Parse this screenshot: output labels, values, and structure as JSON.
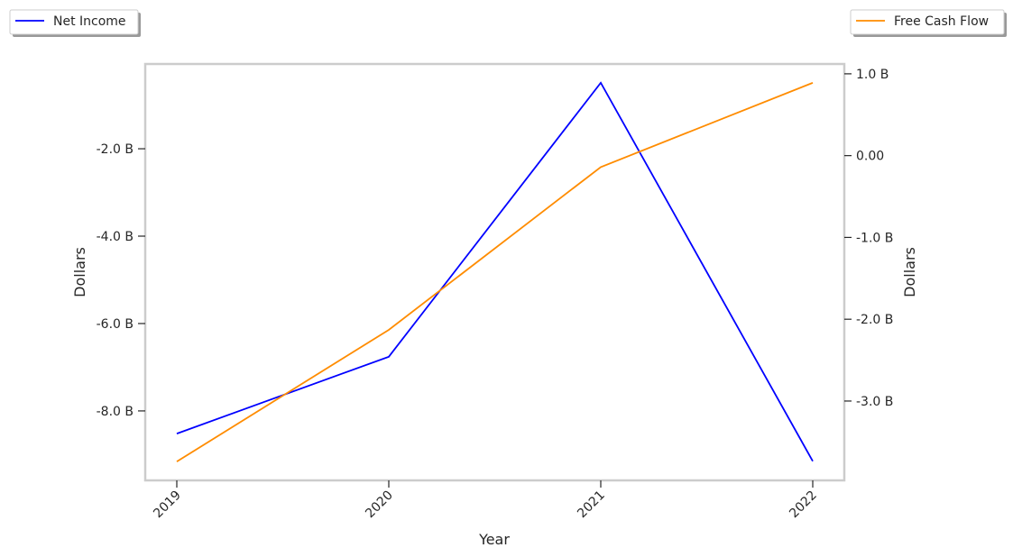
{
  "chart_data": {
    "type": "line",
    "xlabel": "Year",
    "ylabel_left": "Dollars",
    "ylabel_right": "Dollars",
    "categories": [
      "2019",
      "2020",
      "2021",
      "2022"
    ],
    "series": [
      {
        "name": "Net Income",
        "axis": "left",
        "color": "#0000ff",
        "values": [
          -8520000000.0,
          -6760000000.0,
          -490000000.0,
          -9150000000.0
        ]
      },
      {
        "name": "Free Cash Flow",
        "axis": "right",
        "color": "#ff8c00",
        "values": [
          -3740000000.0,
          -2130000000.0,
          -140000000.0,
          890000000.0
        ]
      }
    ],
    "ylim_left": [
      -9590000000.0,
      -60000000.0
    ],
    "ylim_right": [
      -3970000000.0,
      1120000000.0
    ],
    "left_ticks": [
      {
        "value": -2000000000.0,
        "label": "-2.0 B"
      },
      {
        "value": -4000000000.0,
        "label": "-4.0 B"
      },
      {
        "value": -6000000000.0,
        "label": "-6.0 B"
      },
      {
        "value": -8000000000.0,
        "label": "-8.0 B"
      }
    ],
    "right_ticks": [
      {
        "value": 1000000000.0,
        "label": "1.0 B"
      },
      {
        "value": 0,
        "label": "0.00"
      },
      {
        "value": -1000000000.0,
        "label": "-1.0 B"
      },
      {
        "value": -2000000000.0,
        "label": "-2.0 B"
      },
      {
        "value": -3000000000.0,
        "label": "-3.0 B"
      }
    ],
    "grid": false,
    "legend_left": "top-left",
    "legend_right": "top-right"
  }
}
